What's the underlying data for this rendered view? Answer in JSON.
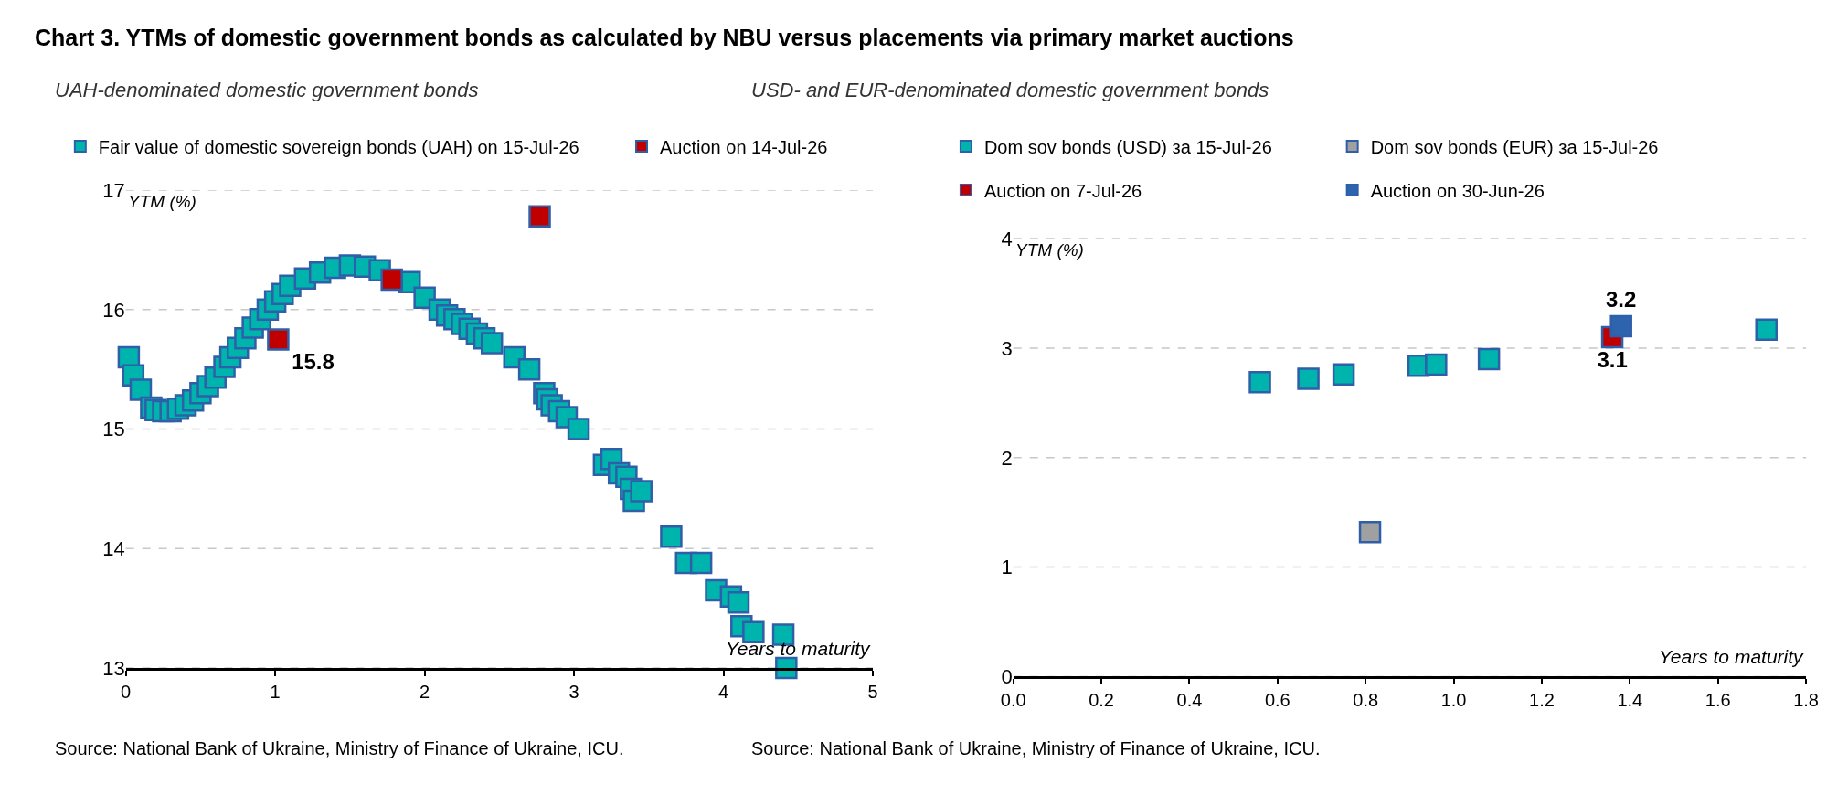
{
  "chart_data": [
    {
      "type": "scatter",
      "title": "Chart 3. YTMs of domestic government bonds as calculated by NBU versus placements via primary market auctions",
      "subtitle": "UAH-denominated domestic government bonds",
      "xlabel": "Years to maturity",
      "ylabel": "YTM (%)",
      "xlim": [
        0,
        5
      ],
      "xticks": [
        0,
        1,
        2,
        3,
        4,
        5
      ],
      "ylim": [
        13,
        17
      ],
      "yticks": [
        13,
        14,
        15,
        16,
        17
      ],
      "grid": "y",
      "legend": "top",
      "marker": "square",
      "series": [
        {
          "name": "Fair value of domestic sovereign bonds (UAH) on 15-Jul-26",
          "color": "#00b4ae",
          "x": [
            0.02,
            0.05,
            0.1,
            0.17,
            0.2,
            0.25,
            0.3,
            0.35,
            0.4,
            0.45,
            0.5,
            0.55,
            0.6,
            0.66,
            0.7,
            0.75,
            0.8,
            0.85,
            0.9,
            0.95,
            1.0,
            1.05,
            1.1,
            1.2,
            1.3,
            1.4,
            1.5,
            1.6,
            1.7,
            1.8,
            1.9,
            2.0,
            2.1,
            2.15,
            2.2,
            2.25,
            2.3,
            2.35,
            2.4,
            2.45,
            2.6,
            2.7,
            2.8,
            2.82,
            2.85,
            2.9,
            2.95,
            3.03,
            3.2,
            3.25,
            3.3,
            3.35,
            3.38,
            3.4,
            3.45,
            3.65,
            3.75,
            3.85,
            3.95,
            4.05,
            4.1,
            4.12,
            4.2,
            4.4,
            4.42
          ],
          "values": [
            15.6,
            15.45,
            15.33,
            15.18,
            15.16,
            15.15,
            15.15,
            15.17,
            15.2,
            15.24,
            15.3,
            15.36,
            15.43,
            15.52,
            15.6,
            15.68,
            15.76,
            15.85,
            15.92,
            16.0,
            16.07,
            16.13,
            16.2,
            16.26,
            16.31,
            16.35,
            16.37,
            16.36,
            16.33,
            null,
            16.23,
            16.1,
            16.0,
            15.95,
            15.92,
            15.88,
            15.84,
            15.8,
            15.76,
            15.72,
            15.6,
            15.5,
            15.3,
            15.25,
            15.2,
            15.15,
            15.1,
            15.0,
            14.7,
            14.75,
            14.63,
            14.6,
            14.5,
            14.4,
            14.48,
            14.1,
            13.88,
            13.88,
            13.65,
            13.6,
            13.55,
            13.35,
            13.3,
            13.28,
            13.0
          ]
        },
        {
          "name": "Auction on 14-Jul-26",
          "color": "#c00000",
          "x": [
            1.02,
            1.78,
            2.77
          ],
          "values": [
            15.75,
            16.25,
            16.78
          ],
          "value_labels": [
            "15.8",
            null,
            null
          ]
        }
      ],
      "annotations": [
        "Source: National Bank of Ukraine, Ministry of Finance of Ukraine, ICU."
      ]
    },
    {
      "type": "scatter",
      "subtitle": "USD- and EUR-denominated domestic government bonds",
      "xlabel": "Years to maturity",
      "ylabel": "YTM (%)",
      "xlim": [
        0,
        1.8
      ],
      "xticks": [
        {
          "value": 0,
          "label": "0.0"
        },
        0.2,
        0.4,
        0.6,
        0.8,
        {
          "value": 1,
          "label": "1.0"
        },
        1.2,
        1.4,
        1.6,
        1.8
      ],
      "ylim": [
        0,
        4
      ],
      "yticks": [
        0,
        1,
        2,
        3,
        4
      ],
      "grid": "y",
      "legend": "top",
      "marker": "square",
      "series": [
        {
          "name": "Dom sov bonds (USD) за 15-Jul-26",
          "color": "#00b4ae",
          "x": [
            0.56,
            0.67,
            0.75,
            0.92,
            0.96,
            1.08,
            1.71
          ],
          "values": [
            2.69,
            2.72,
            2.76,
            2.84,
            2.85,
            2.9,
            3.17
          ]
        },
        {
          "name": "Dom sov bonds (EUR) за 15-Jul-26",
          "color": "#a0a0a0",
          "x": [
            0.81
          ],
          "values": [
            1.32
          ]
        },
        {
          "name": "Auction on 7-Jul-26",
          "color": "#c00000",
          "x": [
            1.36
          ],
          "values": [
            3.1
          ],
          "value_labels": [
            "3.1"
          ]
        },
        {
          "name": "Auction on 30-Jun-26",
          "color": "#2e64ae",
          "x": [
            1.38
          ],
          "values": [
            3.2
          ],
          "value_labels": [
            "3.2"
          ]
        }
      ],
      "annotations": [
        "Source: National Bank of Ukraine, Ministry of Finance of Ukraine, ICU."
      ]
    }
  ]
}
